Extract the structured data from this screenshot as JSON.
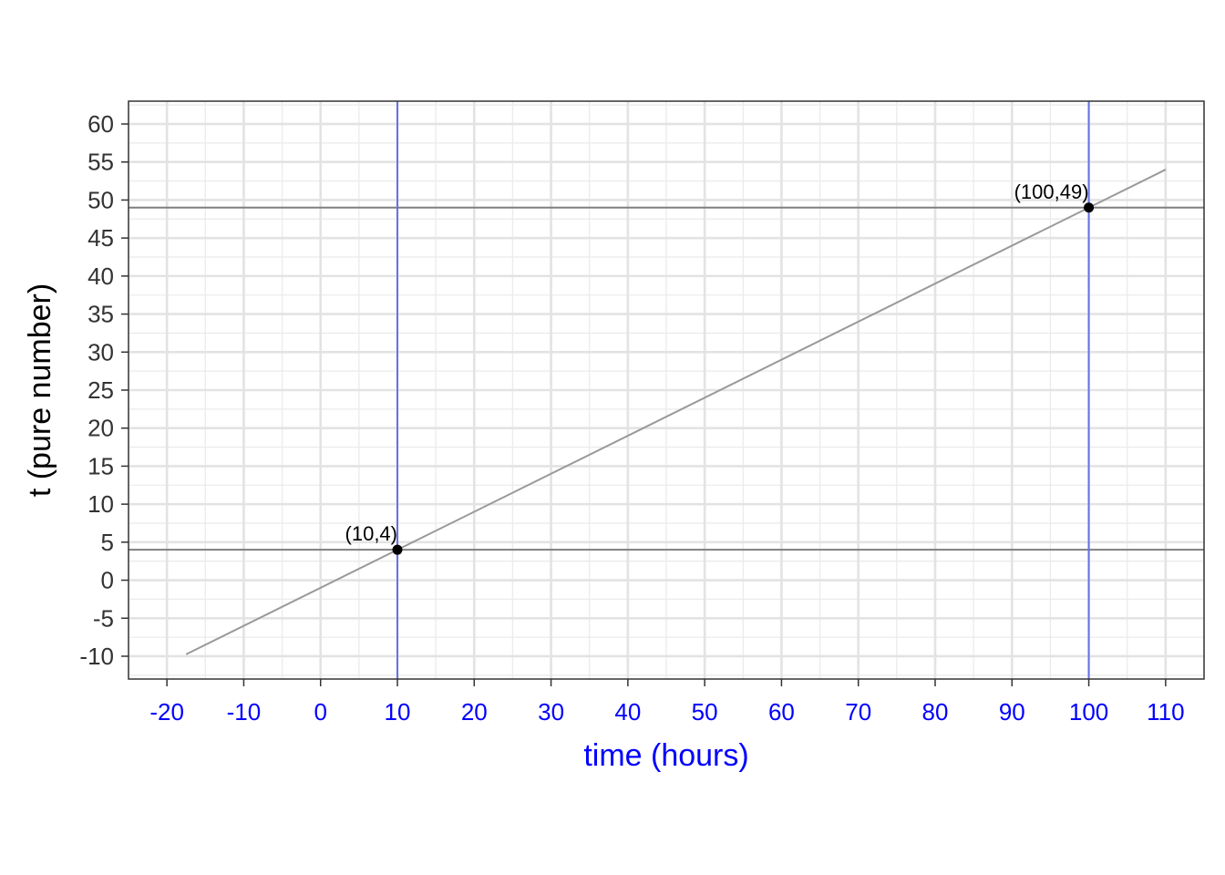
{
  "chart_data": {
    "type": "line",
    "title": "",
    "xlabel": "time (hours)",
    "ylabel": "t (pure number)",
    "xlim": [
      -25,
      115
    ],
    "ylim": [
      -13,
      63
    ],
    "x_ticks": [
      -20,
      -10,
      0,
      10,
      20,
      30,
      40,
      50,
      60,
      70,
      80,
      90,
      100,
      110
    ],
    "y_ticks": [
      -10,
      -5,
      0,
      5,
      10,
      15,
      20,
      25,
      30,
      35,
      40,
      45,
      50,
      55,
      60
    ],
    "grid": true,
    "series": [
      {
        "type": "line",
        "x": [
          -17.5,
          110
        ],
        "y": [
          -9.75,
          54
        ],
        "color": "#999999"
      }
    ],
    "points": [
      {
        "x": 10,
        "y": 4,
        "label": "(10,4)"
      },
      {
        "x": 100,
        "y": 49,
        "label": "(100,49)"
      }
    ],
    "vertical_lines": [
      10,
      100
    ],
    "horizontal_lines": [
      4,
      49
    ],
    "colors": {
      "x_axis_text": "#0000ff",
      "y_axis_text": "#333333",
      "vertical_line": "#6673e6",
      "horizontal_line": "#7f7f7f",
      "point": "#000000"
    }
  }
}
